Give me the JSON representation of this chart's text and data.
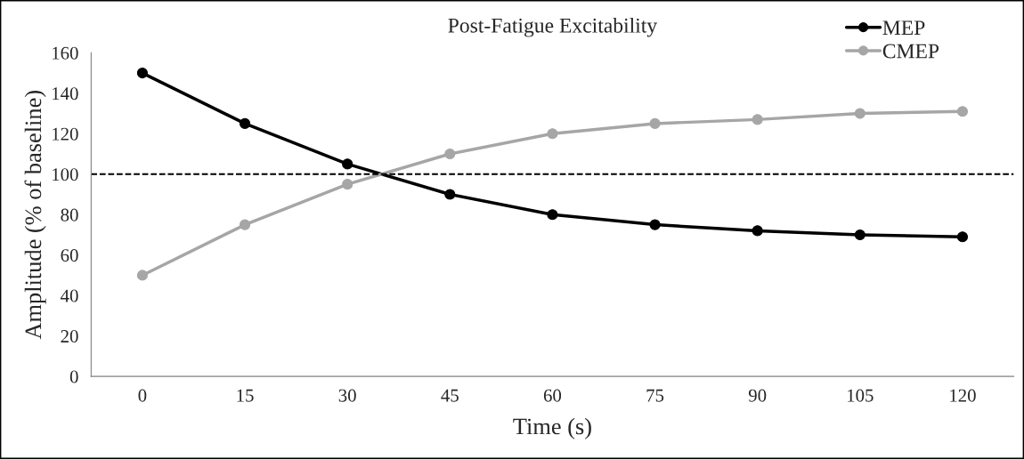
{
  "chart_data": {
    "type": "line",
    "title": "Post-Fatigue Excitability",
    "xlabel": "Time (s)",
    "ylabel": "Amplitude (% of baseline)",
    "categories": [
      "0",
      "15",
      "30",
      "45",
      "60",
      "75",
      "90",
      "105",
      "120"
    ],
    "series": [
      {
        "name": "MEP",
        "color": "#000000",
        "values": [
          150,
          125,
          105,
          90,
          80,
          75,
          72,
          70,
          69
        ]
      },
      {
        "name": "CMEP",
        "color": "#a6a6a6",
        "values": [
          50,
          75,
          95,
          110,
          120,
          125,
          127,
          130,
          131
        ]
      }
    ],
    "ylim": [
      0,
      160
    ],
    "yticks": [
      0,
      20,
      40,
      60,
      80,
      100,
      120,
      140,
      160
    ],
    "ref_lines": [
      {
        "axis": "y",
        "value": 100,
        "color": "#000000",
        "line_style": "dashed"
      }
    ],
    "marker": "circle",
    "line_style": "solid",
    "grid": false,
    "legend": "top right"
  }
}
